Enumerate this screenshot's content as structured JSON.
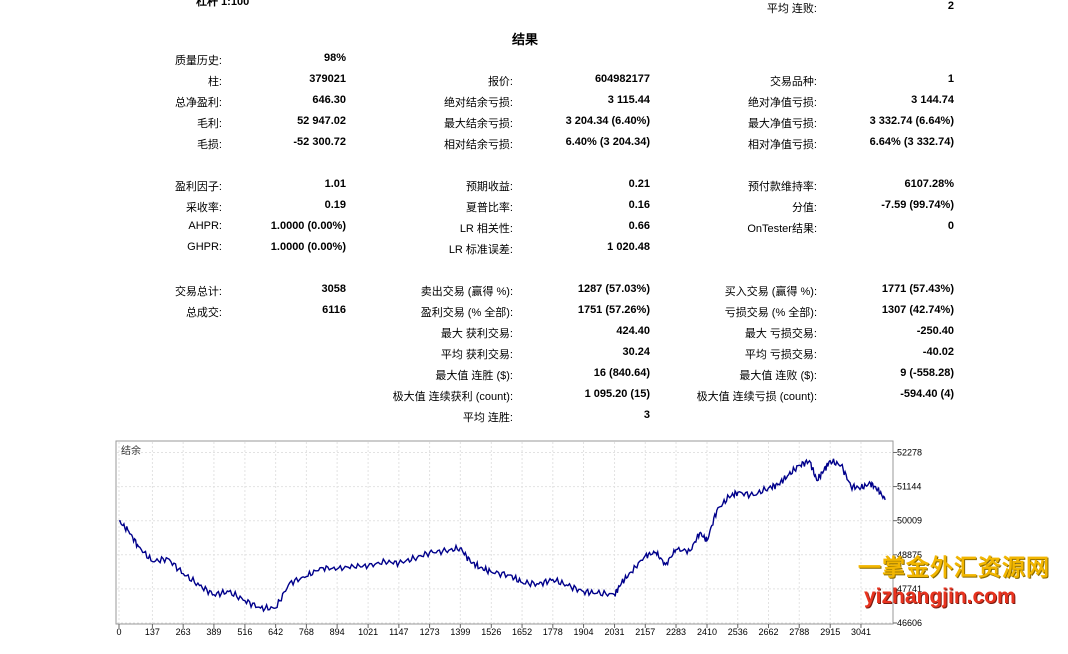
{
  "header": {
    "top_cut_text": "杠杆  1:100",
    "title": "结果"
  },
  "stats": {
    "col1": [
      {
        "label": "质量历史:",
        "value": "98%"
      },
      {
        "label": "柱:",
        "value": "379021"
      },
      {
        "label": "总净盈利:",
        "value": "646.30"
      },
      {
        "label": "毛利:",
        "value": "52 947.02"
      },
      {
        "label": "毛损:",
        "value": "-52 300.72"
      },
      {
        "label": "盈利因子:",
        "value": "1.01"
      },
      {
        "label": "采收率:",
        "value": "0.19"
      },
      {
        "label": "AHPR:",
        "value": "1.0000 (0.00%)"
      },
      {
        "label": "GHPR:",
        "value": "1.0000 (0.00%)"
      },
      {
        "label": "交易总计:",
        "value": "3058"
      },
      {
        "label": "总成交:",
        "value": "6116"
      }
    ],
    "col2": [
      {
        "label": "报价:",
        "value": "604982177"
      },
      {
        "label": "绝对结余亏损:",
        "value": "3 115.44"
      },
      {
        "label": "最大结余亏损:",
        "value": "3 204.34 (6.40%)"
      },
      {
        "label": "相对结余亏损:",
        "value": "6.40% (3 204.34)"
      },
      {
        "label": "预期收益:",
        "value": "0.21"
      },
      {
        "label": "夏普比率:",
        "value": "0.16"
      },
      {
        "label": "LR 相关性:",
        "value": "0.66"
      },
      {
        "label": "LR 标准误差:",
        "value": "1 020.48"
      },
      {
        "label": "卖出交易 (赢得 %):",
        "value": "1287 (57.03%)"
      },
      {
        "label": "盈利交易 (% 全部):",
        "value": "1751 (57.26%)"
      },
      {
        "label": "最大 获利交易:",
        "value": "424.40"
      },
      {
        "label": "平均 获利交易:",
        "value": "30.24"
      },
      {
        "label": "最大值 连胜 ($):",
        "value": "16 (840.64)"
      },
      {
        "label": "极大值 连续获利 (count):",
        "value": "1 095.20 (15)"
      },
      {
        "label": "平均 连胜:",
        "value": "3"
      }
    ],
    "col3": [
      {
        "label": "交易品种:",
        "value": "1"
      },
      {
        "label": "绝对净值亏损:",
        "value": "3 144.74"
      },
      {
        "label": "最大净值亏损:",
        "value": "3 332.74 (6.64%)"
      },
      {
        "label": "相对净值亏损:",
        "value": "6.64% (3 332.74)"
      },
      {
        "label": "预付款维持率:",
        "value": "6107.28%"
      },
      {
        "label": "分值:",
        "value": "-7.59 (99.74%)"
      },
      {
        "label": "OnTester结果:",
        "value": "0"
      },
      {
        "label": "买入交易 (赢得 %):",
        "value": "1771 (57.43%)"
      },
      {
        "label": "亏损交易 (% 全部):",
        "value": "1307 (42.74%)"
      },
      {
        "label": "最大 亏损交易:",
        "value": "-250.40"
      },
      {
        "label": "平均 亏损交易:",
        "value": "-40.02"
      },
      {
        "label": "最大值 连败 ($):",
        "value": "9 (-558.28)"
      },
      {
        "label": "极大值 连续亏损 (count):",
        "value": "-594.40 (4)"
      },
      {
        "label": "平均 连败:",
        "value": "2"
      }
    ]
  },
  "chart_data": {
    "type": "line",
    "legend": "结余",
    "line_color": "#00008b",
    "grid": true,
    "x_ticks": [
      0,
      137,
      263,
      389,
      516,
      642,
      768,
      894,
      1021,
      1147,
      1273,
      1399,
      1526,
      1652,
      1778,
      1904,
      2031,
      2157,
      2283,
      2410,
      2536,
      2662,
      2788,
      2915,
      3041
    ],
    "y_ticks": [
      46606,
      47741,
      48875,
      50009,
      51144,
      52278
    ],
    "xlim": [
      0,
      3160
    ],
    "ylim": [
      46606,
      52560
    ],
    "x": [
      0,
      40,
      80,
      137,
      200,
      263,
      330,
      389,
      450,
      516,
      580,
      642,
      700,
      768,
      830,
      894,
      960,
      1021,
      1090,
      1147,
      1210,
      1273,
      1340,
      1399,
      1440,
      1480,
      1526,
      1600,
      1652,
      1720,
      1778,
      1840,
      1904,
      1960,
      2031,
      2060,
      2100,
      2157,
      2200,
      2240,
      2283,
      2340,
      2380,
      2410,
      2450,
      2500,
      2536,
      2600,
      2662,
      2700,
      2740,
      2788,
      2830,
      2860,
      2890,
      2915,
      2960,
      3000,
      3041,
      3080,
      3110,
      3140
    ],
    "y": [
      50000,
      49650,
      49150,
      48650,
      48750,
      48250,
      47850,
      47550,
      47650,
      47350,
      47100,
      47100,
      47950,
      48150,
      48450,
      48400,
      48500,
      48500,
      48650,
      48600,
      48750,
      48950,
      49000,
      49100,
      48650,
      48450,
      48300,
      48200,
      47950,
      47900,
      48050,
      47850,
      47650,
      47600,
      47550,
      47950,
      48300,
      48850,
      48950,
      48550,
      49050,
      49000,
      49600,
      49350,
      50350,
      50800,
      50950,
      50850,
      51100,
      51200,
      51500,
      51850,
      52000,
      51350,
      51700,
      52000,
      51850,
      51150,
      51100,
      51250,
      51050,
      50700
    ]
  }
}
